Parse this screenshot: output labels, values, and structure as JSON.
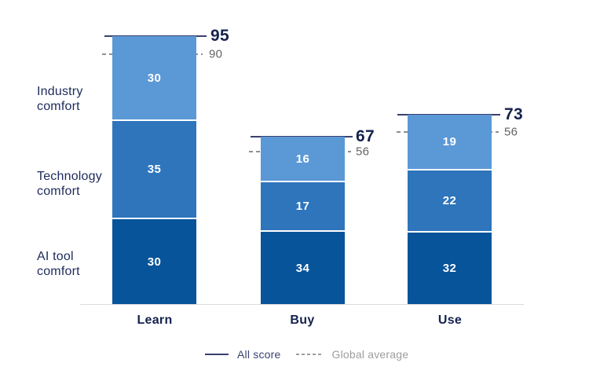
{
  "chart_data": {
    "type": "bar",
    "variant": "stacked-vertical",
    "title": "",
    "categories": [
      "Learn",
      "Buy",
      "Use"
    ],
    "series": [
      {
        "name": "AI tool comfort",
        "name_lines": [
          "AI tool",
          "comfort"
        ],
        "color": "#07549b",
        "values": [
          30,
          34,
          32
        ]
      },
      {
        "name": "Technology comfort",
        "name_lines": [
          "Technology",
          "comfort"
        ],
        "color": "#2e75bc",
        "values": [
          35,
          17,
          22
        ]
      },
      {
        "name": "Industry comfort",
        "name_lines": [
          "Industry",
          "comfort"
        ],
        "color": "#5b98d6",
        "values": [
          30,
          16,
          19
        ]
      }
    ],
    "all_score": {
      "label": "All score",
      "values": [
        95,
        67,
        73
      ],
      "line_style": "solid",
      "line_color": "#3a4070",
      "value_color": "#14224e"
    },
    "global_average": {
      "label": "Global average",
      "values": [
        90,
        56,
        56
      ],
      "line_style": "dashed",
      "line_color": "#8f8f8f",
      "value_color": "#636363"
    },
    "ylim": [
      0,
      95
    ],
    "grid": false,
    "axis_line_color": "#dcdcdc",
    "legend_position": "bottom-center",
    "segment_value_color": "#ffffff"
  }
}
